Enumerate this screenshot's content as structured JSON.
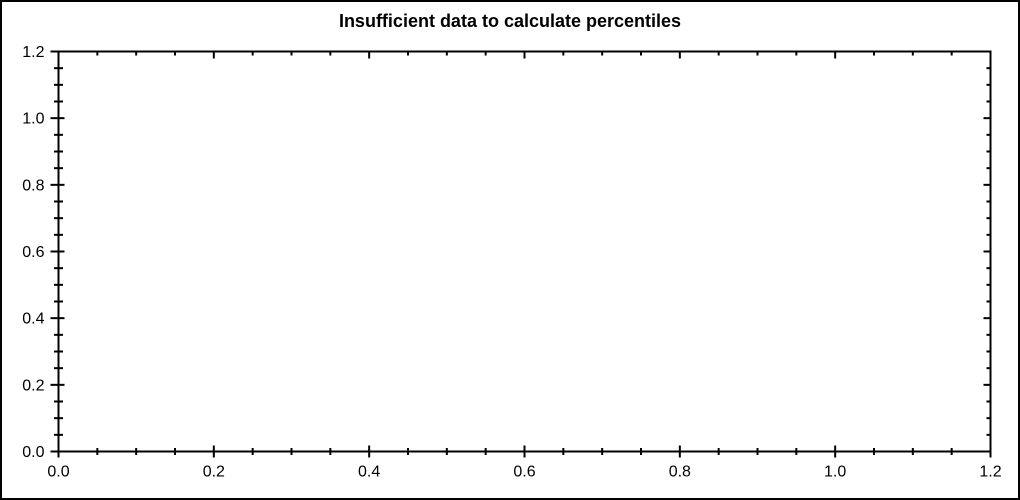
{
  "window": {
    "background": "#ffffff",
    "border_color": "#000000"
  },
  "chart_data": {
    "type": "scatter",
    "title": "Insufficient data to calculate percentiles",
    "series": [],
    "xlabel": "",
    "ylabel": "",
    "xlim": [
      0.0,
      1.2
    ],
    "ylim": [
      0.0,
      1.2
    ],
    "x_major_ticks": [
      0.0,
      0.2,
      0.4,
      0.6,
      0.8,
      1.0,
      1.2
    ],
    "x_tick_labels": [
      "0.0",
      "0.2",
      "0.4",
      "0.6",
      "0.8",
      "1.0",
      "1.2"
    ],
    "y_major_ticks": [
      0.0,
      0.2,
      0.4,
      0.6,
      0.8,
      1.0,
      1.2
    ],
    "y_tick_labels": [
      "1.2",
      "1.0",
      "0.8",
      "0.6",
      "0.4",
      "0.2",
      "0.0"
    ],
    "minor_tick_step": 0.05,
    "grid": false,
    "legend": null,
    "axis_color": "#000000",
    "text_color": "#000000"
  }
}
